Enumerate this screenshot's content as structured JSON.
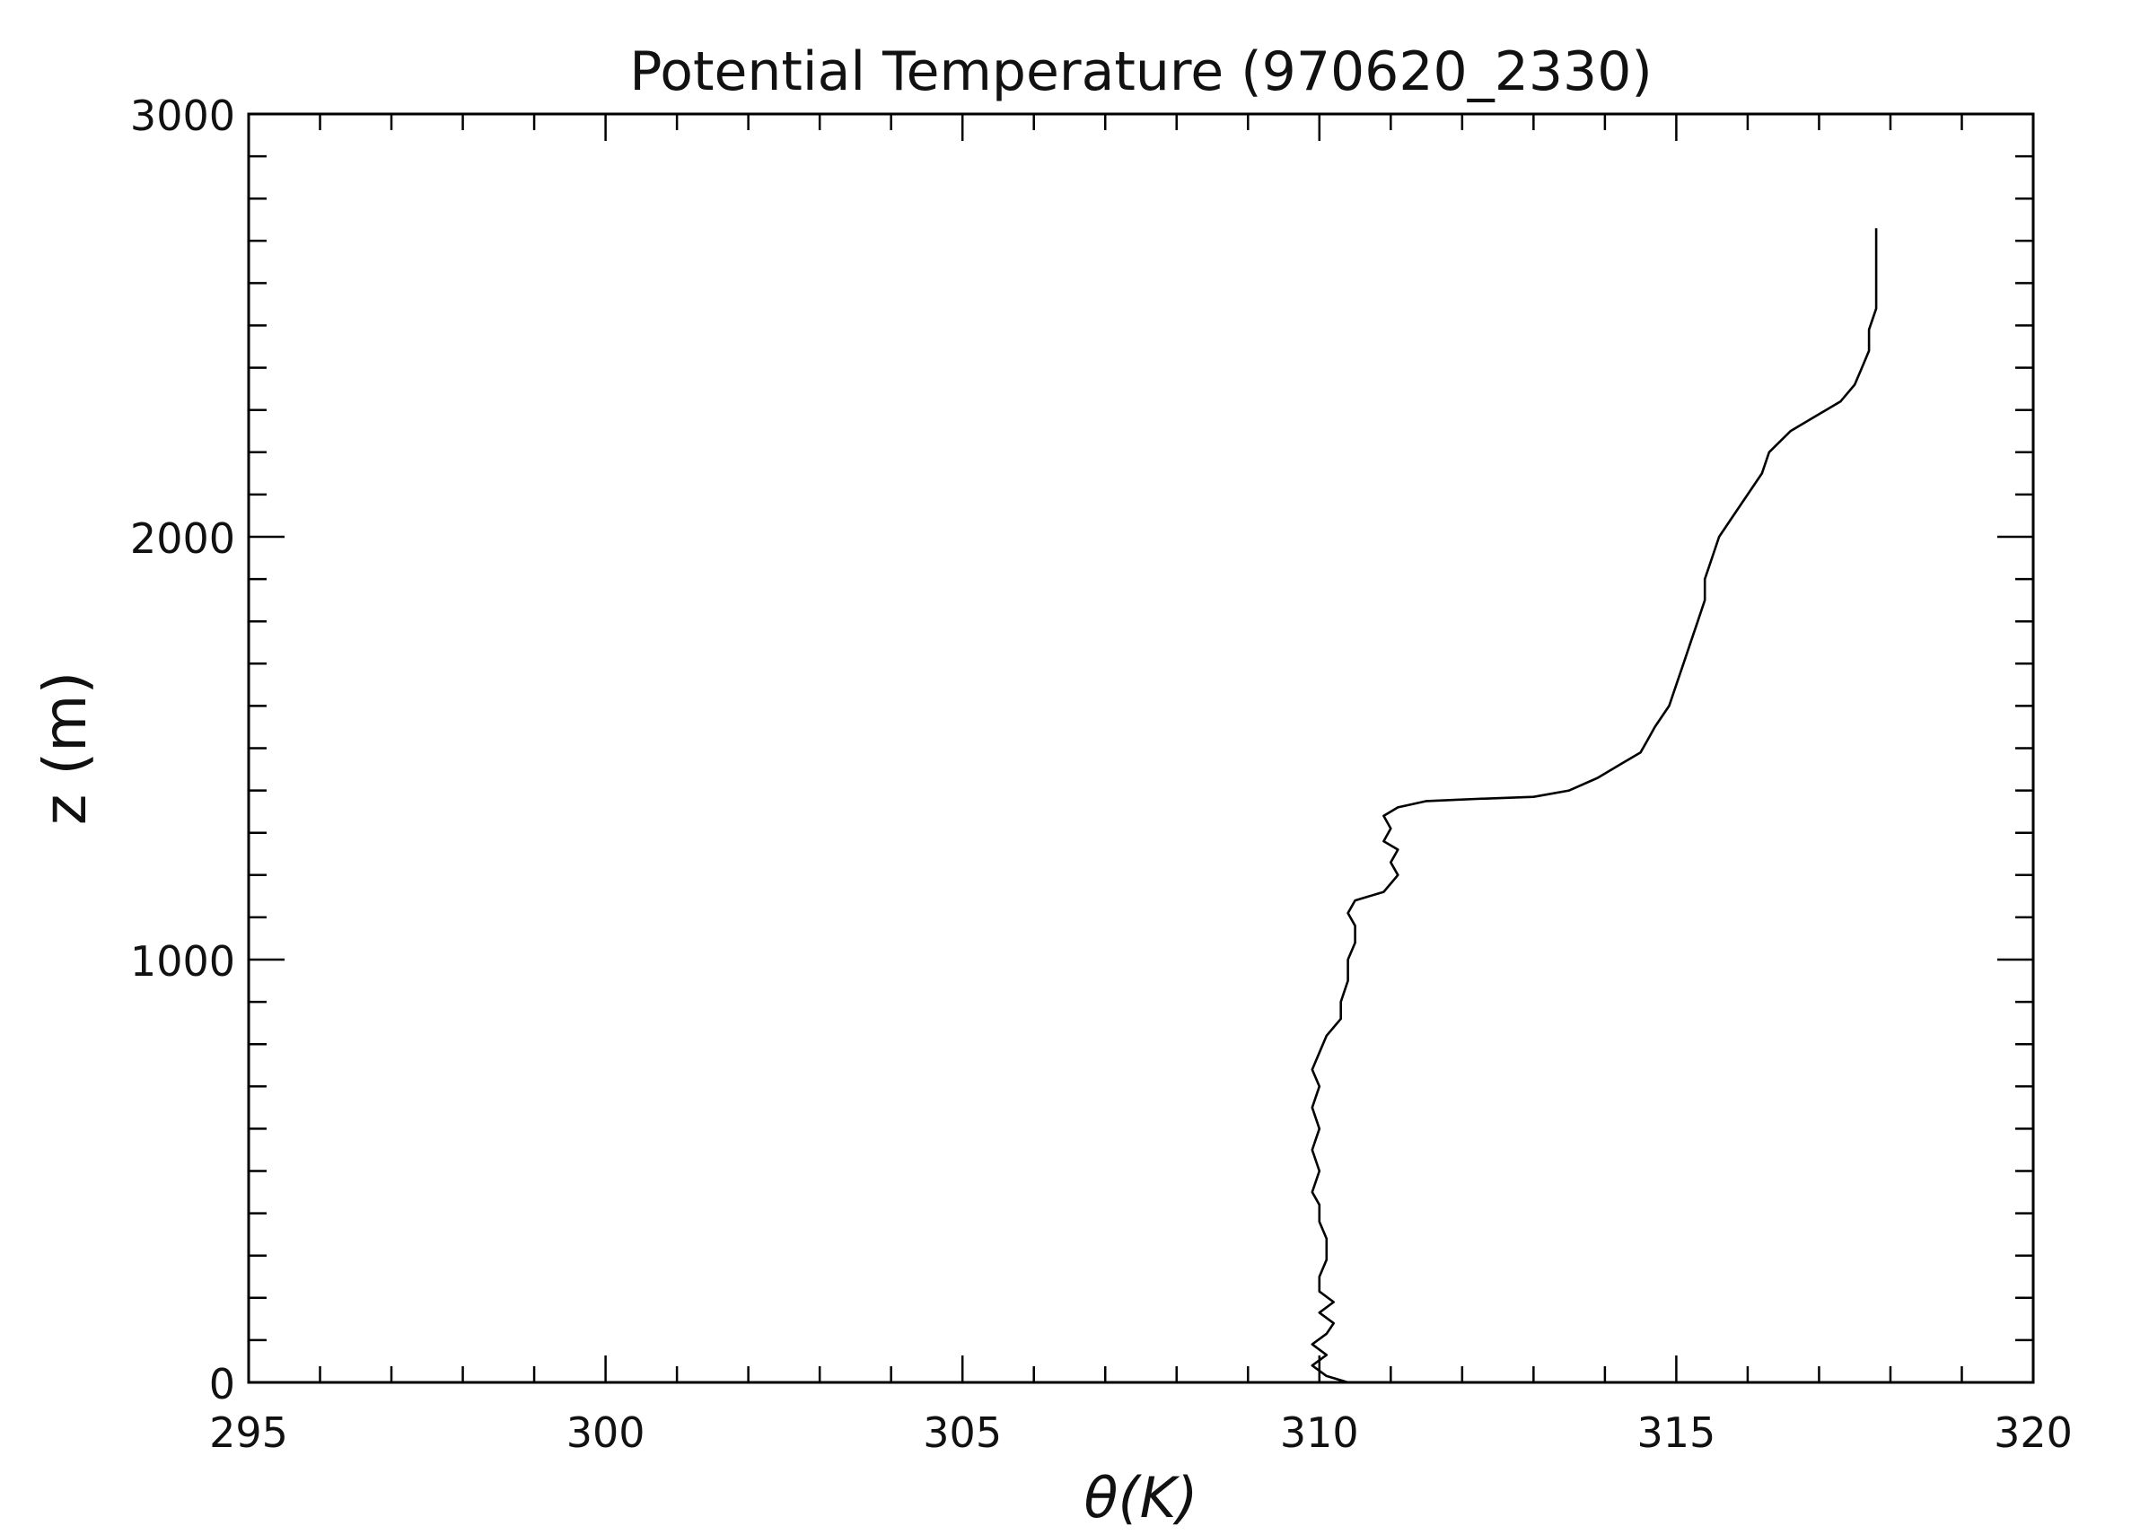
{
  "chart_data": {
    "type": "line",
    "title": "Potential Temperature (970620_2330)",
    "xlabel": "θ(K)",
    "ylabel": "z (m)",
    "xlim": [
      295,
      320
    ],
    "ylim": [
      0,
      3000
    ],
    "grid": false,
    "x_ticks": [
      "295",
      "300",
      "305",
      "310",
      "315",
      "320"
    ],
    "y_ticks": [
      "0",
      "1000",
      "2000",
      "3000"
    ],
    "series": [
      {
        "color": "#000000",
        "points": [
          [
            310.4,
            0
          ],
          [
            310.1,
            15
          ],
          [
            309.9,
            40
          ],
          [
            310.1,
            65
          ],
          [
            309.9,
            90
          ],
          [
            310.1,
            115
          ],
          [
            310.2,
            140
          ],
          [
            310.0,
            165
          ],
          [
            310.2,
            190
          ],
          [
            310.0,
            215
          ],
          [
            310.0,
            250
          ],
          [
            310.1,
            290
          ],
          [
            310.1,
            340
          ],
          [
            310.0,
            380
          ],
          [
            310.0,
            420
          ],
          [
            309.9,
            450
          ],
          [
            310.0,
            500
          ],
          [
            309.9,
            550
          ],
          [
            310.0,
            600
          ],
          [
            309.9,
            650
          ],
          [
            310.0,
            700
          ],
          [
            309.9,
            740
          ],
          [
            310.0,
            780
          ],
          [
            310.1,
            820
          ],
          [
            310.3,
            860
          ],
          [
            310.3,
            900
          ],
          [
            310.4,
            950
          ],
          [
            310.4,
            1000
          ],
          [
            310.5,
            1040
          ],
          [
            310.5,
            1080
          ],
          [
            310.4,
            1110
          ],
          [
            310.5,
            1140
          ],
          [
            310.9,
            1160
          ],
          [
            311.1,
            1200
          ],
          [
            311.0,
            1230
          ],
          [
            311.1,
            1260
          ],
          [
            310.9,
            1280
          ],
          [
            311.0,
            1310
          ],
          [
            310.9,
            1340
          ],
          [
            311.1,
            1360
          ],
          [
            311.5,
            1375
          ],
          [
            312.2,
            1380
          ],
          [
            313.0,
            1385
          ],
          [
            313.5,
            1400
          ],
          [
            313.9,
            1430
          ],
          [
            314.2,
            1460
          ],
          [
            314.5,
            1490
          ],
          [
            314.6,
            1520
          ],
          [
            314.7,
            1550
          ],
          [
            314.9,
            1600
          ],
          [
            315.0,
            1650
          ],
          [
            315.1,
            1700
          ],
          [
            315.2,
            1750
          ],
          [
            315.3,
            1800
          ],
          [
            315.4,
            1850
          ],
          [
            315.4,
            1900
          ],
          [
            315.5,
            1950
          ],
          [
            315.6,
            2000
          ],
          [
            315.8,
            2050
          ],
          [
            316.0,
            2100
          ],
          [
            316.2,
            2150
          ],
          [
            316.3,
            2200
          ],
          [
            316.6,
            2250
          ],
          [
            317.0,
            2290
          ],
          [
            317.3,
            2320
          ],
          [
            317.5,
            2360
          ],
          [
            317.6,
            2400
          ],
          [
            317.7,
            2440
          ],
          [
            317.7,
            2490
          ],
          [
            317.8,
            2540
          ],
          [
            317.8,
            2600
          ],
          [
            317.8,
            2650
          ],
          [
            317.8,
            2700
          ],
          [
            317.8,
            2730
          ]
        ]
      }
    ]
  }
}
